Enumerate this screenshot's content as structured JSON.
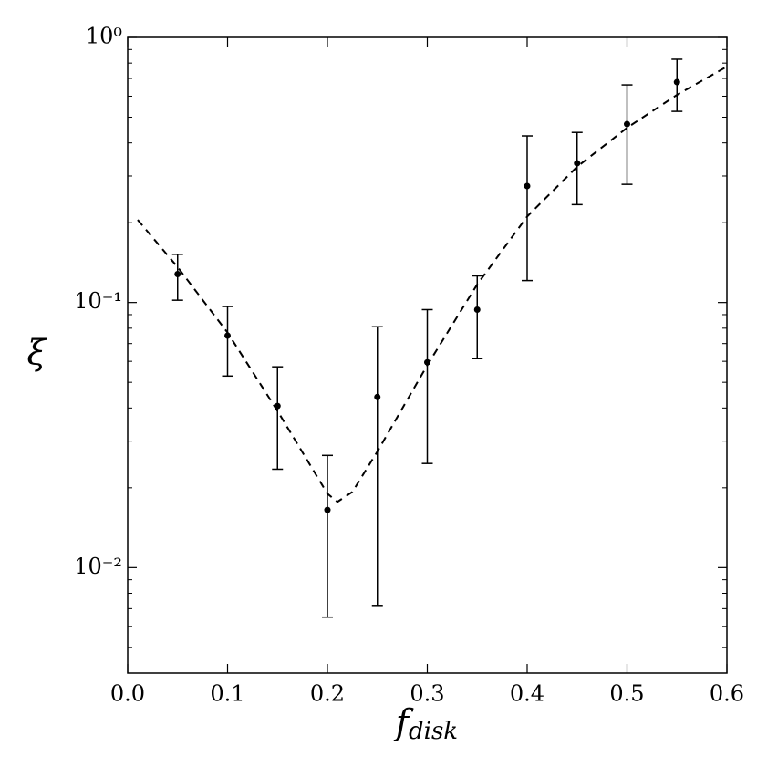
{
  "chart_data": {
    "type": "scatter",
    "xlabel": "f",
    "xlabel_sub": "disk",
    "ylabel": "ξ",
    "xlim": [
      0,
      0.6
    ],
    "xticks": [
      {
        "value": 0,
        "label": "0.0"
      },
      0.1,
      0.2,
      0.3,
      0.4,
      0.5,
      0.6
    ],
    "ylim": [
      0.004,
      1
    ],
    "log_y": true,
    "yticks": [
      {
        "value": 0.01,
        "label": "10⁻²"
      },
      {
        "value": 0.1,
        "label": "10⁻¹"
      },
      {
        "value": 1,
        "label": "10⁰"
      }
    ],
    "yminorticks": [
      0.004,
      0.005,
      0.006,
      0.007,
      0.008,
      0.009,
      0.02,
      0.03,
      0.04,
      0.05,
      0.06,
      0.07,
      0.08,
      0.09,
      0.2,
      0.3,
      0.4,
      0.5,
      0.6,
      0.7,
      0.8,
      0.9
    ],
    "series": [
      {
        "type": "errorbar",
        "color": "#000000",
        "x": [
          0.05,
          0.1,
          0.15,
          0.2,
          0.25,
          0.3,
          0.35,
          0.4,
          0.45,
          0.5,
          0.55
        ],
        "values": [
          0.128,
          0.075,
          0.0407,
          0.0165,
          0.044,
          0.0595,
          0.094,
          0.275,
          0.335,
          0.471,
          0.678
        ],
        "lower": [
          0.102,
          0.0528,
          0.0235,
          0.0065,
          0.0072,
          0.0247,
          0.0614,
          0.121,
          0.234,
          0.279,
          0.526
        ],
        "upper": [
          0.152,
          0.0966,
          0.0572,
          0.0265,
          0.081,
          0.094,
          0.126,
          0.425,
          0.438,
          0.662,
          0.827
        ]
      },
      {
        "type": "line",
        "color": "#000000",
        "dashed": true,
        "x": [
          0.01,
          0.05,
          0.1,
          0.15,
          0.2,
          0.21,
          0.225,
          0.25,
          0.3,
          0.35,
          0.4,
          0.45,
          0.5,
          0.55,
          0.6
        ],
        "values": [
          0.205,
          0.136,
          0.077,
          0.039,
          0.019,
          0.0177,
          0.0193,
          0.0274,
          0.058,
          0.117,
          0.211,
          0.325,
          0.456,
          0.607,
          0.776
        ]
      }
    ]
  }
}
